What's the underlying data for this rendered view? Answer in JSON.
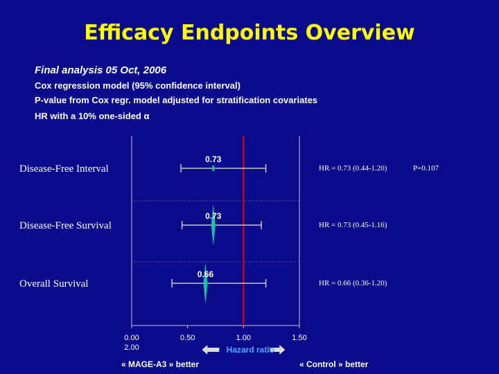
{
  "title": "Efficacy Endpoints Overview",
  "subtitle": "Final analysis 05 Oct, 2006",
  "notes": [
    "Cox regression model (95% confidence interval)",
    "P-value from Cox regr. model adjusted for stratification covariates",
    "HR with a 10% one-sided α"
  ],
  "footer": {
    "left": "« MAGE-A3 » better",
    "right": "« Control » better"
  },
  "colors": {
    "background": "#0a0a8c",
    "title": "#ffff00",
    "reference_line": "#cc0000",
    "estimate_marker": "#19c2a0",
    "hazard_ratio_label": "#4fa8ff"
  },
  "chart_data": {
    "type": "forest",
    "xlabel": "Hazard ratio",
    "x_ticks": [
      "0.00",
      "0.50",
      "1.00",
      "1.50"
    ],
    "extra_tick_label": "2.00",
    "xlim": [
      0,
      1.5
    ],
    "reference_line": 1.0,
    "grid": true,
    "rows": [
      {
        "name": "Disease-Free Interval",
        "hr": 0.73,
        "lo": 0.44,
        "hi": 1.2,
        "hr_label": "0.73",
        "text": "HR = 0.73 (0.44-1.20)",
        "p": "P=0.107"
      },
      {
        "name": "Disease-Free Survival",
        "hr": 0.73,
        "lo": 0.45,
        "hi": 1.16,
        "hr_label": "0.73",
        "text": "HR = 0.73 (0.45-1.16)",
        "p": ""
      },
      {
        "name": "Overall Survival",
        "hr": 0.66,
        "lo": 0.36,
        "hi": 1.2,
        "hr_label": "0.66",
        "text": "HR = 0.66 (0.36-1.20)",
        "p": ""
      }
    ]
  }
}
